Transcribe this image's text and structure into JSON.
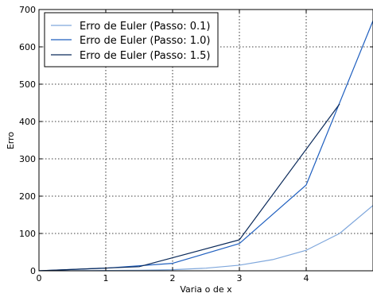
{
  "chart_data": {
    "type": "line",
    "title": "",
    "xlabel": "Varia    o de x",
    "ylabel": "Erro",
    "xlim": [
      0,
      5
    ],
    "ylim": [
      0,
      700
    ],
    "xticks": [
      "0",
      "1",
      "2",
      "3",
      "4"
    ],
    "yticks": [
      "0",
      "100",
      "200",
      "300",
      "400",
      "500",
      "600",
      "700"
    ],
    "grid": true,
    "legend_position": "top-left",
    "series": [
      {
        "name": "Erro de Euler (Passo: 0.1)",
        "color": "#7fa7dc",
        "x": [
          0,
          0.5,
          1.0,
          1.5,
          2.0,
          2.5,
          3.0,
          3.5,
          4.0,
          4.5,
          5.0
        ],
        "y": [
          0,
          0.3,
          0.8,
          1.5,
          3,
          7,
          15,
          30,
          55,
          100,
          175
        ]
      },
      {
        "name": "Erro de Euler (Passo: 1.0)",
        "color": "#1f5fbf",
        "x": [
          0,
          1,
          2,
          3,
          4,
          5
        ],
        "y": [
          0,
          7,
          20,
          73,
          230,
          670
        ]
      },
      {
        "name": "Erro de Euler (Passo: 1.5)",
        "color": "#0b2a5a",
        "x": [
          0,
          1.5,
          3.0,
          4.5
        ],
        "y": [
          0,
          11,
          83,
          447
        ]
      }
    ]
  }
}
